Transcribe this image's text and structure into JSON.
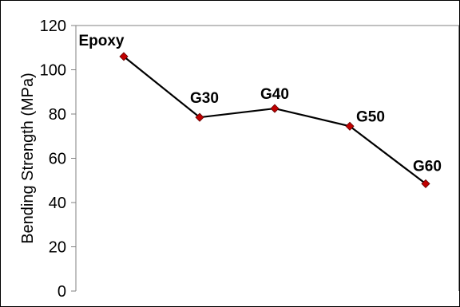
{
  "chart_data": {
    "type": "line",
    "categories": [
      "Epoxy",
      "G30",
      "G40",
      "G50",
      "G60"
    ],
    "values": [
      106,
      78.5,
      82.5,
      74.5,
      48.5
    ],
    "title": "",
    "xlabel": "",
    "ylabel": "Bending Strength  (MPa)",
    "ylim": [
      0,
      120
    ],
    "yticks": [
      0,
      20,
      40,
      60,
      80,
      100,
      120
    ],
    "ytick_labels": [
      "0",
      "20",
      "40",
      "60",
      "80",
      "100",
      "120"
    ],
    "grid": false,
    "legend": "none",
    "line_color": "#000000",
    "marker_color": "#C00000",
    "marker": "diamond"
  }
}
